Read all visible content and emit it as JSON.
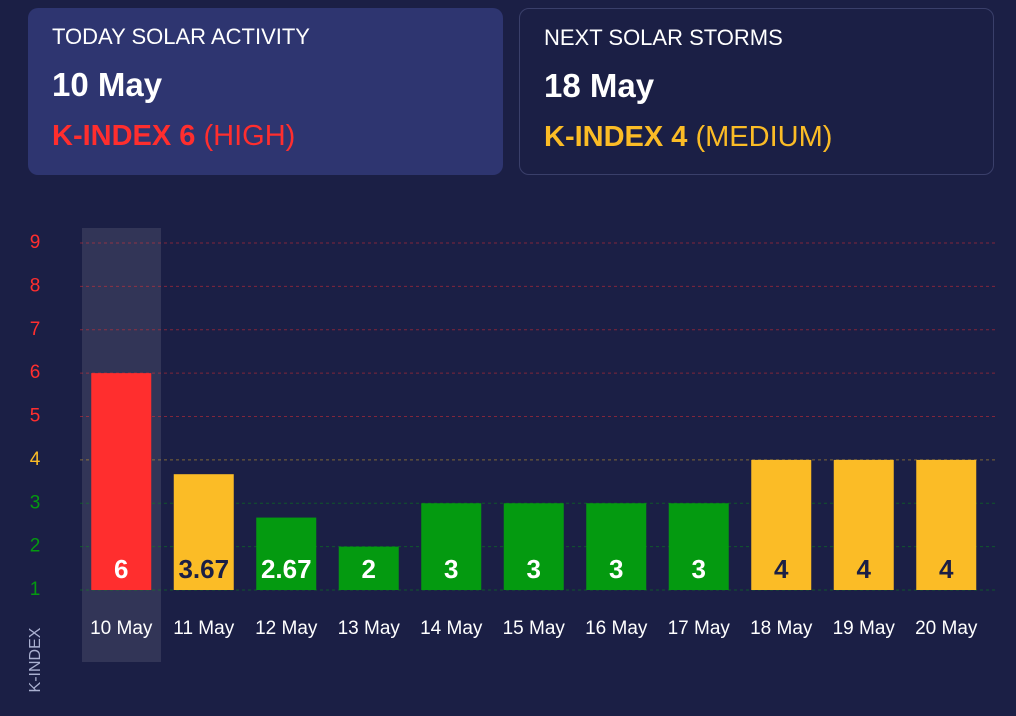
{
  "cards": [
    {
      "title": "TODAY SOLAR ACTIVITY",
      "date": "10 May",
      "level": "K-INDEX 6",
      "level_note": "(HIGH)",
      "color": "#ff2e2e"
    },
    {
      "title": "NEXT SOLAR STORMS",
      "date": "18 May",
      "level": "K-INDEX 4",
      "level_note": "(MEDIUM)",
      "color": "#fbbc26"
    }
  ],
  "chart_data": {
    "type": "bar",
    "y_label": "K-INDEX",
    "categories": [
      "10 May",
      "11 May",
      "12 May",
      "13 May",
      "14 May",
      "15 May",
      "16 May",
      "17 May",
      "18 May",
      "19 May",
      "20 May"
    ],
    "values": [
      6,
      3.67,
      2.67,
      2,
      3,
      3,
      3,
      3,
      4,
      4,
      4
    ],
    "colors": [
      "#ff2e2e",
      "#fbbc26",
      "#049a10",
      "#049a10",
      "#049a10",
      "#049a10",
      "#049a10",
      "#049a10",
      "#fbbc26",
      "#fbbc26",
      "#fbbc26"
    ],
    "value_label_colors": [
      "#ffffff",
      "#1b1f45",
      "#ffffff",
      "#ffffff",
      "#ffffff",
      "#ffffff",
      "#ffffff",
      "#ffffff",
      "#1b1f45",
      "#1b1f45",
      "#1b1f45"
    ],
    "ylim": [
      1,
      9
    ],
    "yticks": [
      1,
      2,
      3,
      4,
      5,
      6,
      7,
      8,
      9
    ],
    "ytick_colors": [
      "#049a10",
      "#049a10",
      "#049a10",
      "#fbbc26",
      "#ff2e2e",
      "#ff2e2e",
      "#ff2e2e",
      "#ff2e2e",
      "#ff2e2e"
    ],
    "grid": true
  }
}
